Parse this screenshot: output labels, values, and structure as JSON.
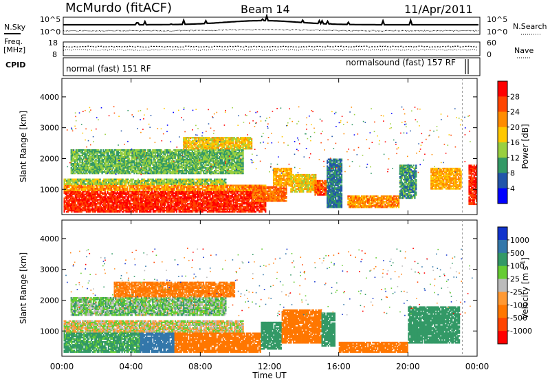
{
  "header": {
    "station": "McMurdo (fitACF)",
    "beam": "Beam 14",
    "date": "11/Apr/2011"
  },
  "top_panel": {
    "left_labels": [
      "N.Sky",
      "Freq.",
      "[MHz]",
      "CPID"
    ],
    "right_labels": [
      "N.Search",
      "Nave"
    ],
    "nsky_ticks": [
      "10^5",
      "10^0"
    ],
    "freq_ticks": [
      "18",
      "8"
    ],
    "nsearch_ticks": [
      "10^5",
      "10^0"
    ],
    "nave_ticks": [
      "60",
      "0"
    ],
    "cpid_left": "normal (fast) 151 RF",
    "cpid_right": "normalsound (fast) 157 RF"
  },
  "power_colorbar": {
    "label": "Power [dB]",
    "ticks": [
      "28",
      "24",
      "20",
      "16",
      "12",
      "8",
      "4"
    ],
    "colors": [
      "#ff0000",
      "#ff4500",
      "#ff8c00",
      "#ffc800",
      "#99d040",
      "#339966",
      "#2255aa",
      "#0000ff"
    ]
  },
  "velocity_colorbar": {
    "label": "Velocity [m s",
    "label_sup": "-1",
    "label_end": "]",
    "ticks": [
      "1000",
      "500",
      "100",
      "25",
      "-25",
      "-100",
      "-500",
      "-1000"
    ],
    "colors": [
      "#1133cc",
      "#3377aa",
      "#339966",
      "#66cc33",
      "#bbbbbb",
      "#ff9933",
      "#ff7700",
      "#ff4400",
      "#ff0000"
    ]
  },
  "chart_data": [
    {
      "type": "heatmap",
      "title": "Power",
      "ylabel": "Slant Range [km]",
      "xlabel": "",
      "x_ticks": [
        "00:00",
        "04:00",
        "08:00",
        "12:00",
        "16:00",
        "20:00",
        "00:00"
      ],
      "x_range_hours": [
        0,
        24
      ],
      "y_ticks": [
        1000,
        2000,
        3000,
        4000
      ],
      "ylim": [
        180,
        4600
      ],
      "colorbar": "Power [dB]",
      "bands": [
        {
          "t0": 0.1,
          "t1": 11.8,
          "r0": 250,
          "r1": 950,
          "v": 28
        },
        {
          "t0": 0.1,
          "t1": 11.8,
          "r0": 950,
          "r1": 1150,
          "v": 22
        },
        {
          "t0": 0.1,
          "t1": 9.5,
          "r0": 1150,
          "r1": 1350,
          "v": 14
        },
        {
          "t0": 11.0,
          "t1": 13.0,
          "r0": 600,
          "r1": 1100,
          "v": 24
        },
        {
          "t0": 12.2,
          "t1": 13.3,
          "r0": 1100,
          "r1": 1700,
          "v": 20
        },
        {
          "t0": 13.2,
          "t1": 14.7,
          "r0": 900,
          "r1": 1500,
          "v": 18
        },
        {
          "t0": 14.6,
          "t1": 15.3,
          "r0": 800,
          "r1": 1300,
          "v": 26
        },
        {
          "t0": 15.3,
          "t1": 16.2,
          "r0": 400,
          "r1": 2000,
          "v": 8
        },
        {
          "t0": 16.5,
          "t1": 19.5,
          "r0": 400,
          "r1": 800,
          "v": 22
        },
        {
          "t0": 19.5,
          "t1": 20.5,
          "r0": 700,
          "r1": 1800,
          "v": 10
        },
        {
          "t0": 21.3,
          "t1": 23.1,
          "r0": 1000,
          "r1": 1700,
          "v": 20
        },
        {
          "t0": 23.5,
          "t1": 24.0,
          "r0": 500,
          "r1": 1800,
          "v": 28
        },
        {
          "t0": 0.5,
          "t1": 10.5,
          "r0": 1500,
          "r1": 2300,
          "v": 12
        },
        {
          "t0": 7.0,
          "t1": 11.0,
          "r0": 2300,
          "r1": 2700,
          "v": 18
        }
      ]
    },
    {
      "type": "heatmap",
      "title": "Velocity",
      "ylabel": "Slant Range [km]",
      "xlabel": "Time UT",
      "x_ticks": [
        "00:00",
        "04:00",
        "08:00",
        "12:00",
        "16:00",
        "20:00",
        "00:00"
      ],
      "x_range_hours": [
        0,
        24
      ],
      "y_ticks": [
        1000,
        2000,
        3000,
        4000
      ],
      "ylim": [
        180,
        4600
      ],
      "colorbar": "Velocity [m s-1]",
      "bands": [
        {
          "t0": 0.1,
          "t1": 10.5,
          "r0": 950,
          "r1": 1350,
          "v": 0
        },
        {
          "t0": 0.1,
          "t1": 4.5,
          "r0": 300,
          "r1": 950,
          "v": 150
        },
        {
          "t0": 4.5,
          "t1": 6.5,
          "r0": 300,
          "r1": 950,
          "v": 600
        },
        {
          "t0": 6.5,
          "t1": 11.5,
          "r0": 300,
          "r1": 950,
          "v": -200
        },
        {
          "t0": 11.5,
          "t1": 12.7,
          "r0": 400,
          "r1": 1300,
          "v": 300
        },
        {
          "t0": 12.7,
          "t1": 15.0,
          "r0": 600,
          "r1": 1700,
          "v": -200
        },
        {
          "t0": 15.0,
          "t1": 15.8,
          "r0": 500,
          "r1": 1600,
          "v": 200
        },
        {
          "t0": 16.0,
          "t1": 20.0,
          "r0": 300,
          "r1": 650,
          "v": -250
        },
        {
          "t0": 20.0,
          "t1": 23.0,
          "r0": 600,
          "r1": 1800,
          "v": 200
        },
        {
          "t0": 0.5,
          "t1": 9.5,
          "r0": 1500,
          "r1": 2100,
          "v": 60
        },
        {
          "t0": 3.0,
          "t1": 10.0,
          "r0": 2100,
          "r1": 2600,
          "v": -150
        }
      ]
    }
  ]
}
